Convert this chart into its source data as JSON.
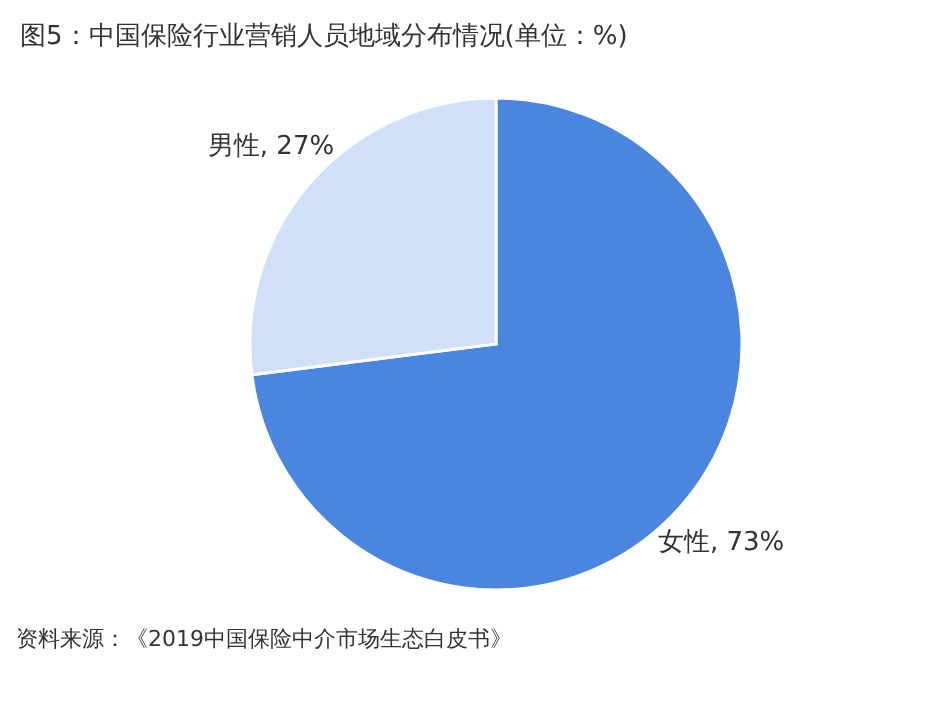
{
  "chart_data": {
    "type": "pie",
    "title": "图5：中国保险行业营销人员地域分布情况(单位：%)",
    "categories": [
      "女性",
      "男性"
    ],
    "values": [
      73,
      27
    ],
    "colors": [
      "#4a86e0",
      "#cfe0f8"
    ],
    "value_labels": [
      "73%",
      "27%"
    ],
    "annotations": [
      "资料来源：《2019中国保险中介市场生态白皮书》"
    ]
  }
}
